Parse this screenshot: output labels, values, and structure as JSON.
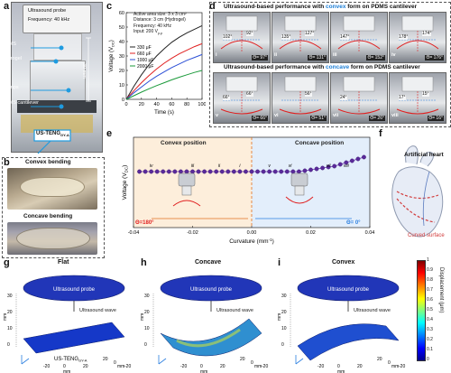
{
  "panel_labels": {
    "a": "a",
    "b": "b",
    "c": "c",
    "d": "d",
    "e": "e",
    "f": "f",
    "g": "g",
    "h": "h",
    "i": "i"
  },
  "panel_a": {
    "probe_title": "Ultrasound probe",
    "frequency": "Frequency: 40 kHz",
    "pdms": "PDMS",
    "hydrogel": "Hydrogel",
    "clamps": "Clamps",
    "cantilever": "PDMS cantilever",
    "dimension": "30 mm",
    "device": "US-TENG",
    "device_sub": "GY-A"
  },
  "panel_b": {
    "convex": "Convex bending",
    "concave": "Concave bending"
  },
  "panel_c_info": [
    "Active area size: 3 x 3 cm²",
    "Distance: 3 cm (Hydrogel)",
    "Frequency: 40 kHz",
    "Input: 200 V"
  ],
  "panel_c_info_sub": "p-p",
  "panel_d": {
    "convex_title_pre": "Ultrasound-based performance with ",
    "convex_word": "convex",
    "title_post": " form on PDMS cantilever",
    "concave_title_pre": "Ultrasound-based performance with ",
    "concave_word": "concave",
    "cells_top": [
      {
        "roman": "i",
        "angles": [
          "102°",
          "92°"
        ],
        "theta": "Θ= 97°"
      },
      {
        "roman": "ii",
        "angles": [
          "135°",
          "127°"
        ],
        "theta": "Θ= 131°"
      },
      {
        "roman": "iii",
        "angles": [
          "147°",
          ""
        ],
        "theta": "Θ= 152°"
      },
      {
        "roman": "iv",
        "angles": [
          "178°",
          "174°"
        ],
        "theta": "Θ= 176°"
      }
    ],
    "cells_bottom": [
      {
        "roman": "v",
        "angles": [
          "66°",
          "66°"
        ],
        "theta": "Θ= 66°"
      },
      {
        "roman": "vi",
        "angles": [
          "",
          "56°"
        ],
        "theta": "Θ= 51°"
      },
      {
        "roman": "vii",
        "angles": [
          "24°",
          ""
        ],
        "theta": "Θ= 26°"
      },
      {
        "roman": "viii",
        "angles": [
          "17°",
          "15°"
        ],
        "theta": "Θ= 16°"
      }
    ]
  },
  "panel_e": {
    "convex_pos": "Convex position",
    "concave_pos": "Concave position",
    "theta_left": "Θ=180°",
    "theta_right": "Θ= 0°",
    "markers": [
      {
        "t": "iv",
        "c": -0.034
      },
      {
        "t": "iii",
        "c": -0.02
      },
      {
        "t": "ii",
        "c": -0.011
      },
      {
        "t": "i",
        "c": -0.004
      },
      {
        "t": "v",
        "c": 0.006
      },
      {
        "t": "vi",
        "c": 0.013
      },
      {
        "t": "vii",
        "c": 0.026
      },
      {
        "t": "viii",
        "c": 0.032
      }
    ]
  },
  "panel_f": {
    "heart": "Artificial heart",
    "surface": "Curved surface"
  },
  "panels_ghi": [
    {
      "label": "g",
      "title": "Flat",
      "probe": "Ultrasound probe",
      "wave": "Ultrasound wave",
      "device": "US-TENG",
      "device_sub": "GY-A"
    },
    {
      "label": "h",
      "title": "Concave",
      "probe": "Ultrasound probe",
      "wave": "Ultrasound wave",
      "device": "",
      "device_sub": ""
    },
    {
      "label": "i",
      "title": "Convex",
      "probe": "Ultrasound probe",
      "wave": "Ultrasound wave",
      "device": "",
      "device_sub": ""
    }
  ],
  "axis_3d": {
    "z_ticks": [
      "0",
      "10",
      "20",
      "30"
    ],
    "z_label": "mm",
    "x_ticks": [
      "20",
      "0",
      "-20"
    ],
    "x_label": "mm",
    "y_ticks": [
      "-20",
      "0",
      "20"
    ],
    "y_label": "mm"
  },
  "colorbar": {
    "label": "Displacement (μm)",
    "ticks": [
      "0",
      "0.1",
      "0.2",
      "0.3",
      "0.4",
      "0.5",
      "0.6",
      "0.7",
      "0.8",
      "0.9",
      "1"
    ]
  },
  "chart_data": [
    {
      "type": "line",
      "panel": "c",
      "xlabel": "Time (s)",
      "ylabel": "Voltage (V",
      "ylabel_sub": "DC",
      "xlim": [
        0,
        100
      ],
      "ylim": [
        0,
        60
      ],
      "xticks": [
        0,
        20,
        40,
        60,
        80,
        100
      ],
      "yticks": [
        0,
        10,
        20,
        30,
        40,
        50,
        60
      ],
      "x": [
        0,
        10,
        20,
        30,
        40,
        50,
        60,
        70,
        80,
        90,
        100
      ],
      "series": [
        {
          "name": "330 μF",
          "color": "#222222",
          "values": [
            0,
            9,
            17,
            24,
            30,
            35,
            39.5,
            43,
            46,
            48.5,
            51
          ]
        },
        {
          "name": "660 μF",
          "color": "#e02020",
          "values": [
            0,
            6,
            11.5,
            16.5,
            21,
            25,
            28.5,
            31.5,
            34,
            36.5,
            38.5
          ]
        },
        {
          "name": "1000 μF",
          "color": "#2b4fd6",
          "values": [
            0,
            4.5,
            8.5,
            12.5,
            16,
            19,
            22,
            24.5,
            27,
            29,
            31
          ]
        },
        {
          "name": "2000 μF",
          "color": "#1a9a3a",
          "values": [
            0,
            2.5,
            5,
            7.3,
            9.5,
            11.5,
            13.5,
            15.3,
            17,
            18.6,
            20
          ]
        }
      ]
    },
    {
      "type": "scatter",
      "panel": "e",
      "xlabel": "Curvature (mm",
      "xlabel_sup": "-1",
      "ylabel": "Voltage (V",
      "ylabel_sub": "DC",
      "xlim": [
        -0.04,
        0.04
      ],
      "xticks": [
        -0.04,
        -0.02,
        0.0,
        0.02,
        0.04
      ],
      "x": [
        -0.038,
        -0.036,
        -0.034,
        -0.032,
        -0.03,
        -0.028,
        -0.026,
        -0.024,
        -0.022,
        -0.02,
        -0.018,
        -0.016,
        -0.014,
        -0.012,
        -0.01,
        -0.008,
        -0.006,
        -0.004,
        -0.002,
        0.0,
        0.002,
        0.004,
        0.006,
        0.008,
        0.01,
        0.012,
        0.014,
        0.016,
        0.018,
        0.02,
        0.022,
        0.024,
        0.026,
        0.028,
        0.03,
        0.032,
        0.034,
        0.036,
        0.038
      ],
      "y": [
        3.1,
        3.1,
        3.1,
        3.1,
        3.1,
        3.1,
        3.1,
        3.1,
        3.1,
        3.1,
        3.1,
        3.1,
        3.1,
        3.1,
        3.1,
        3.1,
        3.1,
        3.1,
        3.1,
        3.1,
        3.1,
        3.1,
        3.1,
        3.1,
        3.1,
        3.1,
        3.1,
        3.1,
        3.15,
        3.2,
        3.25,
        3.3,
        3.35,
        3.4,
        3.5,
        3.6,
        3.7,
        3.8,
        3.9
      ],
      "ylim": [
        0,
        5
      ]
    }
  ]
}
